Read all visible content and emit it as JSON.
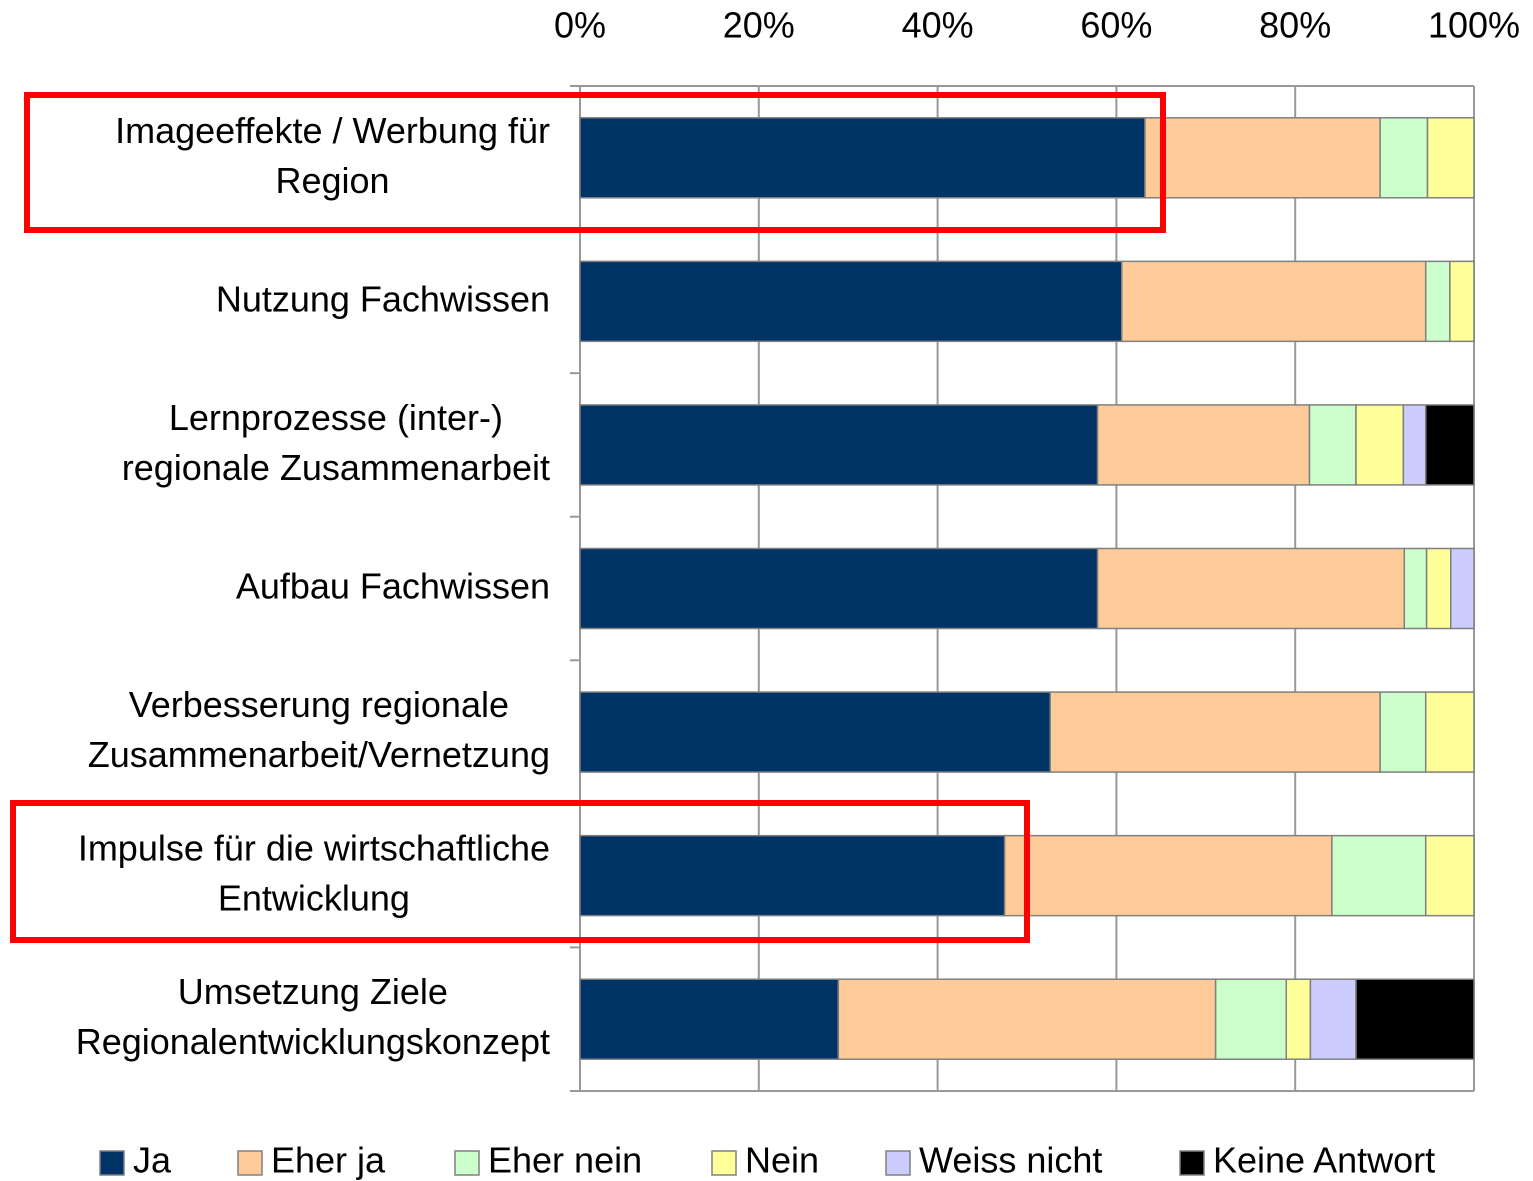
{
  "chart_data": {
    "type": "stacked_bar_horizontal",
    "categories": [
      [
        "Imageeffekte / Werbung für",
        "Region"
      ],
      [
        "Nutzung Fachwissen"
      ],
      [
        "Lernprozesse (inter-)",
        "regionale Zusammenarbeit"
      ],
      [
        "Aufbau Fachwissen"
      ],
      [
        "Verbesserung regionale",
        "Zusammenarbeit/Vernetzung"
      ],
      [
        "Impulse für die wirtschaftliche",
        "Entwicklung"
      ],
      [
        "Umsetzung Ziele",
        "Regionalentwicklungskonzept"
      ]
    ],
    "series": [
      {
        "name": "Ja",
        "color": "#003366",
        "values": [
          63.2,
          60.6,
          57.9,
          57.9,
          52.6,
          47.5,
          28.9
        ]
      },
      {
        "name": "Eher ja",
        "color": "#ffcc99",
        "values": [
          26.3,
          34.0,
          23.7,
          34.3,
          36.9,
          36.6,
          42.2
        ]
      },
      {
        "name": "Eher nein",
        "color": "#ccffcc",
        "values": [
          5.3,
          2.7,
          5.2,
          2.5,
          5.1,
          10.5,
          7.9
        ]
      },
      {
        "name": "Nein",
        "color": "#ffff99",
        "values": [
          5.2,
          2.7,
          5.3,
          2.7,
          5.4,
          5.4,
          2.7
        ]
      },
      {
        "name": "Weiss nicht",
        "color": "#ccccff",
        "values": [
          0,
          0,
          2.5,
          2.6,
          0,
          0,
          5.1
        ]
      },
      {
        "name": "Keine Antwort",
        "color": "#000000",
        "values": [
          0,
          0,
          5.4,
          0,
          0,
          0,
          13.2
        ]
      }
    ],
    "xlim": [
      0,
      100
    ],
    "xticks": [
      {
        "value": 0,
        "label": "0%"
      },
      {
        "value": 20,
        "label": "20%"
      },
      {
        "value": 40,
        "label": "40%"
      },
      {
        "value": 60,
        "label": "60%"
      },
      {
        "value": 80,
        "label": "80%"
      },
      {
        "value": 100,
        "label": "100%"
      }
    ],
    "grid": true,
    "legend": "bottom"
  }
}
